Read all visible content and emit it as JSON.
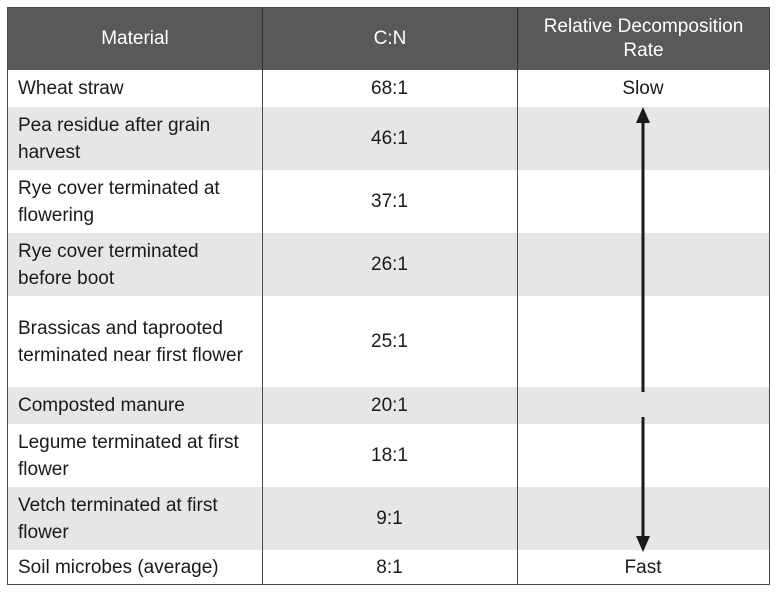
{
  "table": {
    "headers": [
      "Material",
      "C:N",
      "Relative Decomposition Rate"
    ],
    "rows": [
      {
        "material": "Wheat straw",
        "cn": "68:1",
        "rate": "Slow"
      },
      {
        "material": "Pea residue after grain harvest",
        "cn": "46:1",
        "rate": ""
      },
      {
        "material": "Rye cover terminated at flowering",
        "cn": "37:1",
        "rate": ""
      },
      {
        "material": "Rye cover terminated before boot",
        "cn": "26:1",
        "rate": ""
      },
      {
        "material": "Brassicas and taprooted terminated near first flower",
        "cn": "25:1",
        "rate": ""
      },
      {
        "material": "Composted manure",
        "cn": "20:1",
        "rate": ""
      },
      {
        "material": "Legume terminated at first flower",
        "cn": "18:1",
        "rate": ""
      },
      {
        "material": "Vetch terminated at first flower",
        "cn": "9:1",
        "rate": ""
      },
      {
        "material": "Soil microbes (average)",
        "cn": "8:1",
        "rate": "Fast"
      }
    ]
  },
  "colors": {
    "header_bg": "#595959",
    "alt_row_bg": "#e6e6e6",
    "arrow": "#1a1a1a"
  },
  "icons": {
    "rate_arrow": "double-headed-vertical-arrow"
  }
}
